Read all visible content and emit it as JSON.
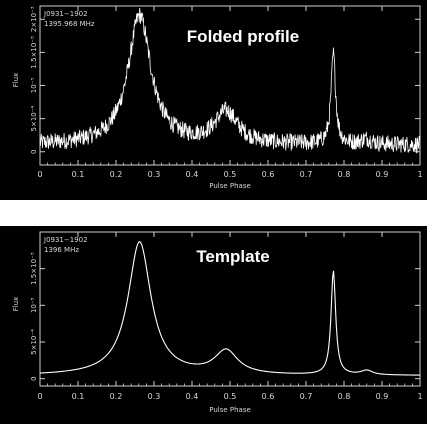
{
  "chart_data": [
    {
      "type": "line",
      "title": "Folded profile",
      "annotations": [
        "J0931−1902",
        "1395.968 MHz"
      ],
      "xlabel": "Pulse Phase",
      "ylabel": "Flux",
      "xlim": [
        0,
        1
      ],
      "ylim": [
        -0.0002,
        0.0022
      ],
      "x_ticks": [
        0,
        0.1,
        0.2,
        0.3,
        0.4,
        0.5,
        0.6,
        0.7,
        0.8,
        0.9,
        1
      ],
      "x_tick_labels": [
        "0",
        "0.1",
        "0.2",
        "0.3",
        "0.4",
        "0.5",
        "0.6",
        "0.7",
        "0.8",
        "0.9",
        "1"
      ],
      "y_ticks": [
        0,
        0.0005,
        0.001,
        0.0015,
        0.002
      ],
      "y_tick_labels": [
        "0",
        "5×10⁻⁴",
        "10⁻³",
        "1.5×10⁻³",
        "2×10⁻³"
      ],
      "noise": 0.00013,
      "components": [
        {
          "center": 0.262,
          "amplitude": 0.00195,
          "width": 0.04
        },
        {
          "center": 0.49,
          "amplitude": 0.00048,
          "width": 0.04
        },
        {
          "center": 0.772,
          "amplitude": 0.00135,
          "width": 0.008
        },
        {
          "center": 0.86,
          "amplitude": 8e-05,
          "width": 0.02
        }
      ],
      "baseline": 0.0001
    },
    {
      "type": "line",
      "title": "Template",
      "annotations": [
        "J0931−1902",
        "1396 MHz"
      ],
      "xlabel": "Pulse Phase",
      "ylabel": "Flux",
      "xlim": [
        0,
        1
      ],
      "ylim": [
        -0.0001,
        0.002
      ],
      "x_ticks": [
        0,
        0.1,
        0.2,
        0.3,
        0.4,
        0.5,
        0.6,
        0.7,
        0.8,
        0.9,
        1
      ],
      "x_tick_labels": [
        "0",
        "0.1",
        "0.2",
        "0.3",
        "0.4",
        "0.5",
        "0.6",
        "0.7",
        "0.8",
        "0.9",
        "1"
      ],
      "y_ticks": [
        0,
        0.0005,
        0.001,
        0.0015
      ],
      "y_tick_labels": [
        "0",
        "5×10⁻⁴",
        "10⁻³",
        "1.5×10⁻³"
      ],
      "noise": 0,
      "components": [
        {
          "center": 0.262,
          "amplitude": 0.00182,
          "width": 0.04
        },
        {
          "center": 0.49,
          "amplitude": 0.00032,
          "width": 0.04
        },
        {
          "center": 0.772,
          "amplitude": 0.00142,
          "width": 0.008
        },
        {
          "center": 0.86,
          "amplitude": 6e-05,
          "width": 0.02
        }
      ],
      "baseline": 4e-05
    }
  ]
}
